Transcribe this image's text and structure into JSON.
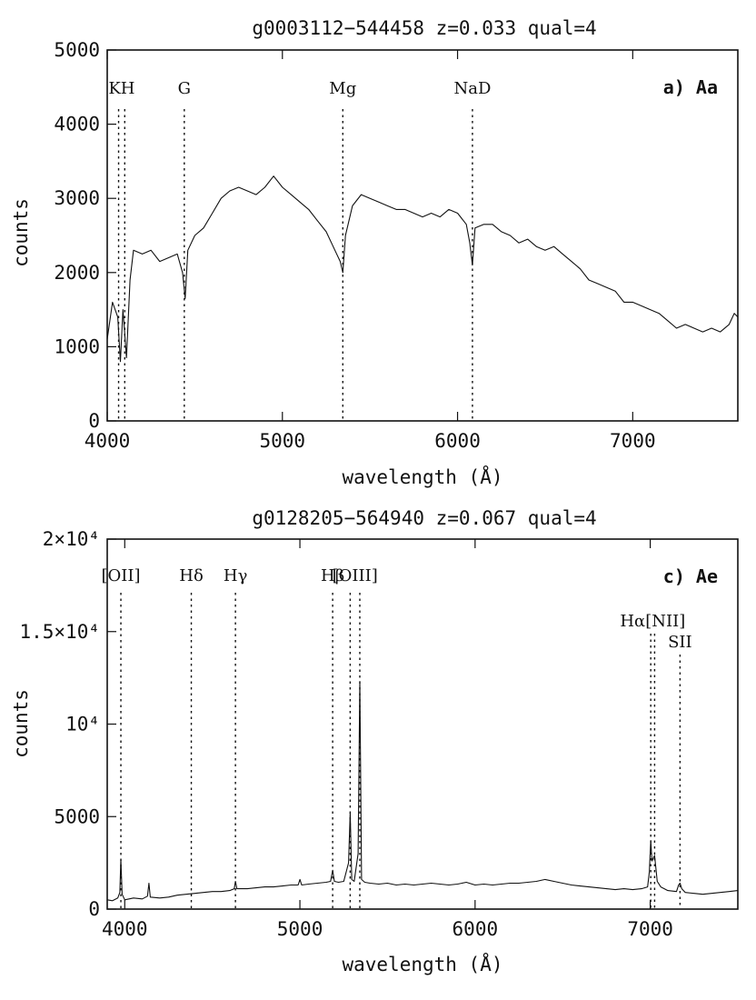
{
  "chart_data": [
    {
      "type": "line",
      "title": "g0003112−544458   z=0.033   qual=4",
      "panel_label": "a) Aa",
      "xlabel": "wavelength (Å)",
      "ylabel": "counts",
      "xlim": [
        4000,
        7600
      ],
      "ylim": [
        0,
        5000
      ],
      "x_ticks": [
        {
          "v": 4000,
          "label": "4000"
        },
        {
          "v": 5000,
          "label": "5000"
        },
        {
          "v": 6000,
          "label": "6000"
        },
        {
          "v": 7000,
          "label": "7000"
        }
      ],
      "y_ticks": [
        {
          "v": 0,
          "label": "0"
        },
        {
          "v": 1000,
          "label": "1000"
        },
        {
          "v": 2000,
          "label": "2000"
        },
        {
          "v": 3000,
          "label": "3000"
        },
        {
          "v": 4000,
          "label": "4000"
        },
        {
          "v": 5000,
          "label": "5000"
        }
      ],
      "lines": [
        {
          "label": "KH",
          "x": [
            4065,
            4100
          ]
        },
        {
          "label": "G",
          "x": [
            4440
          ]
        },
        {
          "label": "Mg",
          "x": [
            5345
          ]
        },
        {
          "label": "NaD",
          "x": [
            6085
          ]
        }
      ],
      "series": [
        {
          "x": [
            4000,
            4030,
            4060,
            4075,
            4090,
            4110,
            4130,
            4150,
            4200,
            4250,
            4300,
            4350,
            4400,
            4430,
            4445,
            4460,
            4500,
            4550,
            4600,
            4650,
            4700,
            4750,
            4800,
            4850,
            4900,
            4950,
            5000,
            5050,
            5100,
            5150,
            5200,
            5250,
            5300,
            5330,
            5345,
            5360,
            5400,
            5450,
            5500,
            5550,
            5600,
            5650,
            5700,
            5750,
            5800,
            5850,
            5900,
            5950,
            6000,
            6050,
            6070,
            6085,
            6100,
            6150,
            6200,
            6250,
            6300,
            6350,
            6400,
            6450,
            6500,
            6550,
            6600,
            6650,
            6700,
            6750,
            6800,
            6850,
            6900,
            6950,
            7000,
            7050,
            7100,
            7150,
            7200,
            7250,
            7300,
            7350,
            7400,
            7450,
            7500,
            7550,
            7580,
            7600
          ],
          "y": [
            1100,
            1600,
            1400,
            800,
            1500,
            850,
            1900,
            2300,
            2250,
            2300,
            2150,
            2200,
            2250,
            2000,
            1650,
            2300,
            2500,
            2600,
            2800,
            3000,
            3100,
            3150,
            3100,
            3050,
            3150,
            3300,
            3150,
            3050,
            2950,
            2850,
            2700,
            2550,
            2300,
            2150,
            2000,
            2500,
            2900,
            3050,
            3000,
            2950,
            2900,
            2850,
            2850,
            2800,
            2750,
            2800,
            2750,
            2850,
            2800,
            2650,
            2400,
            2100,
            2600,
            2650,
            2650,
            2550,
            2500,
            2400,
            2450,
            2350,
            2300,
            2350,
            2250,
            2150,
            2050,
            1900,
            1850,
            1800,
            1750,
            1600,
            1600,
            1550,
            1500,
            1450,
            1350,
            1250,
            1300,
            1250,
            1200,
            1250,
            1200,
            1300,
            1450,
            1400
          ]
        }
      ]
    },
    {
      "type": "line",
      "title": "g0128205−564940   z=0.067   qual=4",
      "panel_label": "c) Ae",
      "xlabel": "wavelength (Å)",
      "ylabel": "counts",
      "xlim": [
        3900,
        7500
      ],
      "ylim": [
        0,
        20000
      ],
      "x_ticks": [
        {
          "v": 4000,
          "label": "4000"
        },
        {
          "v": 5000,
          "label": "5000"
        },
        {
          "v": 6000,
          "label": "6000"
        },
        {
          "v": 7000,
          "label": "7000"
        }
      ],
      "y_ticks": [
        {
          "v": 0,
          "label": "0"
        },
        {
          "v": 5000,
          "label": "5000"
        },
        {
          "v": 10000,
          "label": "10⁴"
        },
        {
          "v": 15000,
          "label": "1.5×10⁴"
        },
        {
          "v": 20000,
          "label": "2×10⁴"
        }
      ],
      "lines": [
        {
          "label": "[OII]",
          "x": [
            3978
          ]
        },
        {
          "label": "Hδ",
          "x": [
            4380
          ]
        },
        {
          "label": "Hγ",
          "x": [
            4632
          ]
        },
        {
          "label": "Hβ",
          "x": [
            5187
          ]
        },
        {
          "label": "[OIII]",
          "x": [
            5287,
            5342
          ]
        },
        {
          "label": "Hα[NII]",
          "x": [
            7003,
            7025
          ]
        },
        {
          "label": "SII",
          "x": [
            7170
          ]
        }
      ],
      "series": [
        {
          "x": [
            3900,
            3930,
            3960,
            3972,
            3978,
            3985,
            4000,
            4050,
            4100,
            4130,
            4138,
            4146,
            4200,
            4250,
            4300,
            4350,
            4400,
            4450,
            4500,
            4550,
            4600,
            4625,
            4632,
            4640,
            4700,
            4750,
            4800,
            4850,
            4900,
            4950,
            4990,
            5000,
            5010,
            5050,
            5100,
            5150,
            5175,
            5187,
            5197,
            5220,
            5250,
            5278,
            5287,
            5296,
            5310,
            5332,
            5342,
            5352,
            5370,
            5400,
            5450,
            5500,
            5550,
            5600,
            5650,
            5700,
            5750,
            5800,
            5850,
            5900,
            5950,
            6000,
            6050,
            6100,
            6150,
            6200,
            6250,
            6300,
            6350,
            6400,
            6450,
            6500,
            6550,
            6600,
            6650,
            6700,
            6750,
            6800,
            6850,
            6900,
            6950,
            6985,
            6995,
            7003,
            7010,
            7025,
            7040,
            7060,
            7100,
            7150,
            7162,
            7170,
            7180,
            7200,
            7250,
            7300,
            7350,
            7400,
            7450,
            7500
          ],
          "y": [
            500,
            450,
            600,
            900,
            2700,
            800,
            500,
            600,
            550,
            700,
            1400,
            650,
            600,
            650,
            750,
            800,
            850,
            900,
            950,
            950,
            1000,
            1100,
            1500,
            1100,
            1100,
            1150,
            1200,
            1200,
            1250,
            1300,
            1300,
            1600,
            1300,
            1350,
            1400,
            1450,
            1500,
            2100,
            1500,
            1450,
            1500,
            2500,
            5200,
            1600,
            1500,
            3000,
            12300,
            1600,
            1450,
            1400,
            1350,
            1400,
            1300,
            1350,
            1300,
            1350,
            1400,
            1350,
            1300,
            1350,
            1450,
            1300,
            1350,
            1300,
            1350,
            1400,
            1400,
            1450,
            1500,
            1600,
            1500,
            1400,
            1300,
            1250,
            1200,
            1150,
            1100,
            1050,
            1100,
            1050,
            1100,
            1200,
            2000,
            3700,
            2600,
            2900,
            1500,
            1200,
            1000,
            950,
            1300,
            1400,
            1100,
            900,
            850,
            800,
            850,
            900,
            950,
            1000
          ]
        }
      ]
    }
  ]
}
